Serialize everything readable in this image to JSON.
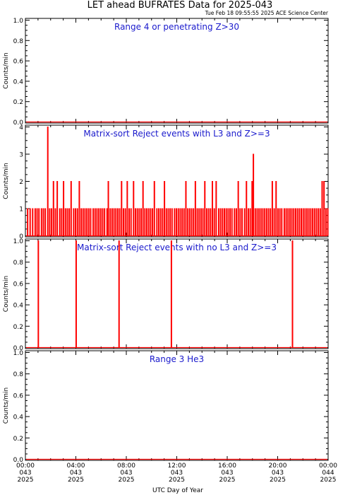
{
  "header": {
    "title": "LET ahead BUFRATES Data for 2025-043",
    "timestamp": "Tue Feb 18 09:55:55 2025 ACE Science Center"
  },
  "x_axis": {
    "label": "UTC Day of Year",
    "ticks": [
      {
        "time": "00:00",
        "doy": "043",
        "year": "2025",
        "hour": 0
      },
      {
        "time": "04:00",
        "doy": "043",
        "year": "2025",
        "hour": 4
      },
      {
        "time": "08:00",
        "doy": "043",
        "year": "2025",
        "hour": 8
      },
      {
        "time": "12:00",
        "doy": "043",
        "year": "2025",
        "hour": 12
      },
      {
        "time": "16:00",
        "doy": "043",
        "year": "2025",
        "hour": 16
      },
      {
        "time": "20:00",
        "doy": "043",
        "year": "2025",
        "hour": 20
      },
      {
        "time": "00:00",
        "doy": "044",
        "year": "2025",
        "hour": 24
      }
    ]
  },
  "colors": {
    "data": "#ff0000",
    "panel_title": "#1a1acc",
    "axis": "#000000"
  },
  "chart_data": [
    {
      "type": "line",
      "title": "Range 4 or  penetrating Z>30",
      "ylabel": "Counts/min",
      "ylim": [
        0,
        1
      ],
      "yticks": [
        "0.0",
        "0.2",
        "0.4",
        "0.6",
        "0.8",
        "1.0"
      ],
      "ytick_values": [
        0,
        0.2,
        0.4,
        0.6,
        0.8,
        1.0
      ],
      "xlim": [
        0,
        24
      ],
      "baseline": 0,
      "spikes": []
    },
    {
      "type": "line",
      "title": "Matrix-sort Reject events with L3 and Z>=3",
      "ylabel": "Counts/min",
      "ylim": [
        0,
        4
      ],
      "yticks": [
        "0",
        "1",
        "2",
        "3",
        "4"
      ],
      "ytick_values": [
        0,
        1,
        2,
        3,
        4
      ],
      "xlim": [
        0,
        24
      ],
      "baseline": 0,
      "spikes": [
        [
          0.15,
          1
        ],
        [
          0.35,
          1
        ],
        [
          0.55,
          1
        ],
        [
          0.75,
          1
        ],
        [
          0.9,
          1
        ],
        [
          1.05,
          1
        ],
        [
          1.25,
          1
        ],
        [
          1.4,
          1
        ],
        [
          1.55,
          1
        ],
        [
          1.75,
          4
        ],
        [
          1.9,
          1
        ],
        [
          2.05,
          1
        ],
        [
          2.2,
          2
        ],
        [
          2.35,
          1
        ],
        [
          2.5,
          2
        ],
        [
          2.7,
          1
        ],
        [
          2.85,
          1
        ],
        [
          3.0,
          2
        ],
        [
          3.15,
          1
        ],
        [
          3.3,
          1
        ],
        [
          3.45,
          1
        ],
        [
          3.6,
          2
        ],
        [
          3.8,
          1
        ],
        [
          3.95,
          1
        ],
        [
          4.1,
          1
        ],
        [
          4.25,
          2
        ],
        [
          4.4,
          1
        ],
        [
          4.55,
          1
        ],
        [
          4.7,
          1
        ],
        [
          4.85,
          1
        ],
        [
          5.0,
          1
        ],
        [
          5.15,
          1
        ],
        [
          5.35,
          1
        ],
        [
          5.5,
          1
        ],
        [
          5.65,
          1
        ],
        [
          5.8,
          1
        ],
        [
          5.95,
          1
        ],
        [
          6.1,
          1
        ],
        [
          6.25,
          1
        ],
        [
          6.45,
          1
        ],
        [
          6.55,
          2
        ],
        [
          6.7,
          1
        ],
        [
          6.85,
          1
        ],
        [
          7.0,
          1
        ],
        [
          7.15,
          1
        ],
        [
          7.3,
          1
        ],
        [
          7.45,
          1
        ],
        [
          7.6,
          2
        ],
        [
          7.75,
          1
        ],
        [
          7.9,
          1
        ],
        [
          8.05,
          2
        ],
        [
          8.2,
          1
        ],
        [
          8.35,
          1
        ],
        [
          8.55,
          2
        ],
        [
          8.7,
          1
        ],
        [
          8.85,
          1
        ],
        [
          9.0,
          1
        ],
        [
          9.15,
          1
        ],
        [
          9.3,
          2
        ],
        [
          9.45,
          1
        ],
        [
          9.6,
          1
        ],
        [
          9.75,
          1
        ],
        [
          9.9,
          1
        ],
        [
          10.05,
          1
        ],
        [
          10.2,
          2
        ],
        [
          10.4,
          1
        ],
        [
          10.55,
          1
        ],
        [
          10.7,
          1
        ],
        [
          10.85,
          1
        ],
        [
          11.0,
          2
        ],
        [
          11.15,
          1
        ],
        [
          11.3,
          1
        ],
        [
          11.45,
          1
        ],
        [
          11.6,
          1
        ],
        [
          11.8,
          1
        ],
        [
          11.95,
          1
        ],
        [
          12.1,
          1
        ],
        [
          12.25,
          1
        ],
        [
          12.4,
          1
        ],
        [
          12.55,
          1
        ],
        [
          12.7,
          2
        ],
        [
          12.85,
          1
        ],
        [
          13.0,
          1
        ],
        [
          13.15,
          1
        ],
        [
          13.3,
          1
        ],
        [
          13.45,
          2
        ],
        [
          13.6,
          1
        ],
        [
          13.75,
          1
        ],
        [
          13.9,
          1
        ],
        [
          14.05,
          1
        ],
        [
          14.2,
          2
        ],
        [
          14.35,
          1
        ],
        [
          14.5,
          1
        ],
        [
          14.65,
          1
        ],
        [
          14.8,
          2
        ],
        [
          14.95,
          1
        ],
        [
          15.1,
          2
        ],
        [
          15.3,
          1
        ],
        [
          15.45,
          1
        ],
        [
          15.6,
          1
        ],
        [
          15.75,
          1
        ],
        [
          15.9,
          1
        ],
        [
          16.05,
          1
        ],
        [
          16.2,
          1
        ],
        [
          16.35,
          1
        ],
        [
          16.55,
          1
        ],
        [
          16.7,
          1
        ],
        [
          16.85,
          2
        ],
        [
          17.0,
          1
        ],
        [
          17.15,
          1
        ],
        [
          17.35,
          1
        ],
        [
          17.5,
          2
        ],
        [
          17.65,
          1
        ],
        [
          17.8,
          1
        ],
        [
          17.95,
          2
        ],
        [
          18.05,
          3
        ],
        [
          18.2,
          1
        ],
        [
          18.35,
          1
        ],
        [
          18.5,
          1
        ],
        [
          18.65,
          1
        ],
        [
          18.8,
          1
        ],
        [
          18.95,
          1
        ],
        [
          19.1,
          1
        ],
        [
          19.25,
          1
        ],
        [
          19.4,
          1
        ],
        [
          19.55,
          2
        ],
        [
          19.7,
          1
        ],
        [
          19.85,
          2
        ],
        [
          20.0,
          1
        ],
        [
          20.15,
          1
        ],
        [
          20.3,
          1
        ],
        [
          20.5,
          1
        ],
        [
          20.65,
          1
        ],
        [
          20.8,
          1
        ],
        [
          20.95,
          1
        ],
        [
          21.1,
          1
        ],
        [
          21.25,
          1
        ],
        [
          21.4,
          1
        ],
        [
          21.55,
          1
        ],
        [
          21.7,
          1
        ],
        [
          21.85,
          1
        ],
        [
          22.0,
          1
        ],
        [
          22.15,
          1
        ],
        [
          22.3,
          1
        ],
        [
          22.45,
          1
        ],
        [
          22.6,
          1
        ],
        [
          22.75,
          1
        ],
        [
          22.9,
          1
        ],
        [
          23.05,
          1
        ],
        [
          23.2,
          1
        ],
        [
          23.35,
          1
        ],
        [
          23.5,
          2
        ],
        [
          23.65,
          2
        ],
        [
          23.8,
          1
        ],
        [
          23.95,
          1
        ]
      ]
    },
    {
      "type": "line",
      "title": "Matrix-sort Reject events with no L3 and Z>=3",
      "ylabel": "Counts/min",
      "ylim": [
        0,
        1
      ],
      "yticks": [
        "0.0",
        "0.2",
        "0.4",
        "0.6",
        "0.8",
        "1.0"
      ],
      "ytick_values": [
        0,
        0.2,
        0.4,
        0.6,
        0.8,
        1.0
      ],
      "xlim": [
        0,
        24
      ],
      "baseline": 0,
      "spikes": [
        [
          1.0,
          1
        ],
        [
          4.0,
          1
        ],
        [
          7.4,
          1
        ],
        [
          11.55,
          1
        ],
        [
          21.15,
          1
        ]
      ]
    },
    {
      "type": "line",
      "title": "Range 3 He3",
      "ylabel": "Counts/min",
      "ylim": [
        0,
        1
      ],
      "yticks": [
        "0.0",
        "0.2",
        "0.4",
        "0.6",
        "0.8",
        "1.0"
      ],
      "ytick_values": [
        0,
        0.2,
        0.4,
        0.6,
        0.8,
        1.0
      ],
      "xlim": [
        0,
        24
      ],
      "baseline": 0,
      "spikes": []
    }
  ]
}
